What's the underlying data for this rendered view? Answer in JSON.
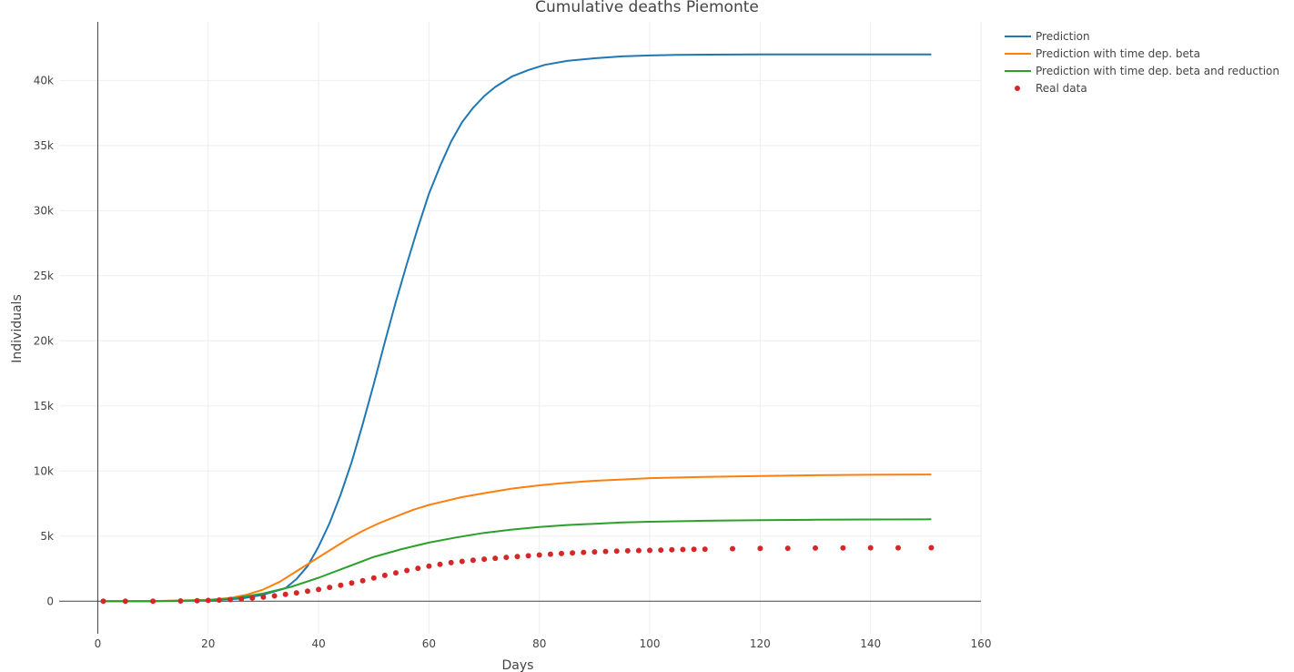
{
  "chart_data": {
    "type": "line",
    "title": "Cumulative deaths Piemonte",
    "xlabel": "Days",
    "ylabel": "Individuals",
    "xlim": [
      -7,
      160
    ],
    "ylim": [
      -2500,
      44500
    ],
    "x_ticks": [
      0,
      20,
      40,
      60,
      80,
      100,
      120,
      140,
      160
    ],
    "x_tick_labels": [
      "0",
      "20",
      "40",
      "60",
      "80",
      "100",
      "120",
      "140",
      "160"
    ],
    "y_ticks": [
      0,
      5000,
      10000,
      15000,
      20000,
      25000,
      30000,
      35000,
      40000
    ],
    "y_tick_labels": [
      "0",
      "5k",
      "10k",
      "15k",
      "20k",
      "25k",
      "30k",
      "35k",
      "40k"
    ],
    "grid": true,
    "legend_position": "top-right",
    "series": [
      {
        "name": "Prediction",
        "mode": "line",
        "color": "#1f77b4",
        "x": [
          1,
          10,
          20,
          26,
          30,
          34,
          36,
          38,
          40,
          42,
          44,
          46,
          48,
          50,
          52,
          54,
          56,
          58,
          60,
          62,
          64,
          66,
          68,
          70,
          72,
          75,
          78,
          81,
          85,
          90,
          95,
          100,
          105,
          110,
          120,
          130,
          140,
          151
        ],
        "y": [
          0,
          5,
          60,
          200,
          500,
          1000,
          1700,
          2700,
          4200,
          6000,
          8200,
          10700,
          13600,
          16700,
          19900,
          23000,
          25900,
          28700,
          31300,
          33400,
          35300,
          36800,
          37900,
          38800,
          39500,
          40300,
          40800,
          41200,
          41500,
          41700,
          41850,
          41920,
          41960,
          41980,
          42000,
          42000,
          42000,
          42000
        ]
      },
      {
        "name": "Prediction with time dep. beta",
        "mode": "line",
        "color": "#ff7f0e",
        "x": [
          1,
          10,
          20,
          24,
          27,
          30,
          33,
          36,
          39,
          42,
          45,
          48,
          51,
          54,
          57,
          60,
          63,
          66,
          70,
          75,
          80,
          85,
          90,
          95,
          100,
          110,
          120,
          130,
          140,
          151
        ],
        "y": [
          0,
          10,
          100,
          250,
          500,
          900,
          1500,
          2300,
          3100,
          3900,
          4700,
          5400,
          6000,
          6500,
          7000,
          7400,
          7700,
          8000,
          8300,
          8650,
          8900,
          9100,
          9250,
          9350,
          9450,
          9550,
          9620,
          9680,
          9710,
          9730
        ]
      },
      {
        "name": "Prediction with time dep. beta and reduction",
        "mode": "line",
        "color": "#2ca02c",
        "x": [
          1,
          10,
          20,
          25,
          30,
          35,
          40,
          45,
          50,
          55,
          60,
          65,
          70,
          75,
          80,
          85,
          90,
          95,
          100,
          110,
          120,
          130,
          140,
          151
        ],
        "y": [
          0,
          5,
          80,
          250,
          600,
          1100,
          1800,
          2600,
          3400,
          4000,
          4500,
          4900,
          5250,
          5500,
          5700,
          5850,
          5950,
          6050,
          6100,
          6180,
          6230,
          6260,
          6280,
          6290
        ]
      },
      {
        "name": "Real data",
        "mode": "markers",
        "color": "#d62728",
        "x": [
          1,
          5,
          10,
          15,
          18,
          20,
          22,
          24,
          26,
          28,
          30,
          32,
          34,
          36,
          38,
          40,
          42,
          44,
          46,
          48,
          50,
          52,
          54,
          56,
          58,
          60,
          62,
          64,
          66,
          68,
          70,
          72,
          74,
          76,
          78,
          80,
          82,
          84,
          86,
          88,
          90,
          92,
          94,
          96,
          98,
          100,
          102,
          104,
          106,
          108,
          110,
          115,
          120,
          125,
          130,
          135,
          140,
          145,
          151
        ],
        "y": [
          0,
          0,
          5,
          20,
          40,
          60,
          90,
          130,
          180,
          240,
          320,
          410,
          520,
          640,
          770,
          900,
          1060,
          1220,
          1400,
          1580,
          1780,
          1980,
          2180,
          2360,
          2530,
          2690,
          2830,
          2960,
          3060,
          3150,
          3230,
          3300,
          3370,
          3430,
          3490,
          3550,
          3610,
          3660,
          3710,
          3750,
          3790,
          3820,
          3850,
          3870,
          3890,
          3910,
          3930,
          3950,
          3970,
          3985,
          4000,
          4030,
          4050,
          4070,
          4080,
          4090,
          4100,
          4105,
          4110
        ]
      }
    ]
  }
}
